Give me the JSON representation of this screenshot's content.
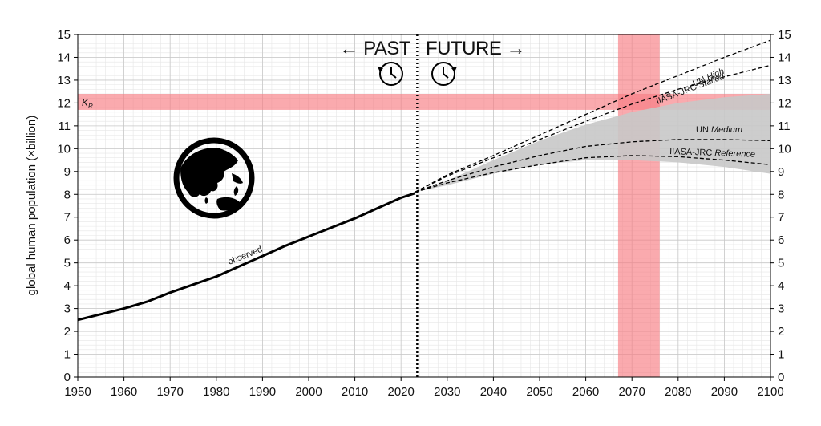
{
  "chart_data": {
    "type": "line",
    "title": "",
    "xlabel": "",
    "ylabel": "global human population (×billion)",
    "xlim": [
      1950,
      2100
    ],
    "ylim": [
      0,
      15
    ],
    "x_ticks": [
      "1950",
      "1960",
      "1970",
      "1980",
      "1990",
      "2000",
      "2010",
      "2020",
      "2030",
      "2040",
      "2050",
      "2060",
      "2070",
      "2080",
      "2090",
      "2100"
    ],
    "y_ticks": [
      "0",
      "1",
      "2",
      "3",
      "4",
      "5",
      "6",
      "7",
      "8",
      "9",
      "10",
      "11",
      "12",
      "13",
      "14",
      "15"
    ],
    "grid": true,
    "labels": {
      "past": "← PAST",
      "future": "FUTURE →",
      "kr": "K",
      "kr_sub": "R",
      "observed": "observed",
      "un_high_a": "UN ",
      "un_high_b": "High",
      "iiasa_stalled_a": "IIASA-JRC ",
      "iiasa_stalled_b": "Stalled",
      "un_medium_a": "UN ",
      "un_medium_b": "Medium",
      "iiasa_ref_a": "IIASA-JRC ",
      "iiasa_ref_b": "Reference"
    },
    "divider_year": 2023.5,
    "kr_band": [
      11.7,
      12.4
    ],
    "year_band": [
      2067,
      2076
    ],
    "colors": {
      "band": "#f87d83",
      "uncertainty": "#c8c8c8",
      "line": "#000000",
      "grid": "#dddddd"
    },
    "observed": {
      "x": [
        1950,
        1955,
        1960,
        1965,
        1970,
        1975,
        1980,
        1985,
        1990,
        1995,
        2000,
        2005,
        2010,
        2015,
        2020,
        2023
      ],
      "y": [
        2.5,
        2.75,
        3.0,
        3.3,
        3.7,
        4.05,
        4.4,
        4.85,
        5.3,
        5.75,
        6.15,
        6.55,
        6.95,
        7.4,
        7.85,
        8.05
      ]
    },
    "uncertainty_interval": {
      "x": [
        2023,
        2030,
        2040,
        2050,
        2060,
        2070,
        2080,
        2090,
        2100
      ],
      "upper": [
        8.1,
        8.6,
        9.5,
        10.35,
        11.05,
        11.6,
        12.0,
        12.25,
        12.4
      ],
      "lower": [
        8.1,
        8.4,
        8.9,
        9.3,
        9.5,
        9.5,
        9.4,
        9.2,
        8.9
      ]
    },
    "series": [
      {
        "name": "UN High",
        "style": "dashed",
        "x": [
          2023,
          2030,
          2040,
          2050,
          2060,
          2070,
          2080,
          2090,
          2100
        ],
        "y": [
          8.1,
          8.85,
          9.7,
          10.6,
          11.5,
          12.4,
          13.2,
          14.0,
          14.75
        ]
      },
      {
        "name": "IIASA-JRC Stalled",
        "style": "dashed",
        "x": [
          2023,
          2030,
          2040,
          2050,
          2060,
          2070,
          2080,
          2090,
          2100
        ],
        "y": [
          8.1,
          8.8,
          9.6,
          10.4,
          11.2,
          11.95,
          12.6,
          13.15,
          13.65
        ]
      },
      {
        "name": "UN Medium",
        "style": "dashed",
        "x": [
          2023,
          2030,
          2040,
          2050,
          2060,
          2070,
          2080,
          2090,
          2100
        ],
        "y": [
          8.1,
          8.6,
          9.2,
          9.7,
          10.1,
          10.3,
          10.4,
          10.4,
          10.35
        ]
      },
      {
        "name": "IIASA-JRC Reference",
        "style": "dashed",
        "x": [
          2023,
          2030,
          2040,
          2050,
          2060,
          2070,
          2080,
          2090,
          2100
        ],
        "y": [
          8.1,
          8.5,
          8.95,
          9.3,
          9.6,
          9.7,
          9.65,
          9.5,
          9.3
        ]
      }
    ]
  }
}
